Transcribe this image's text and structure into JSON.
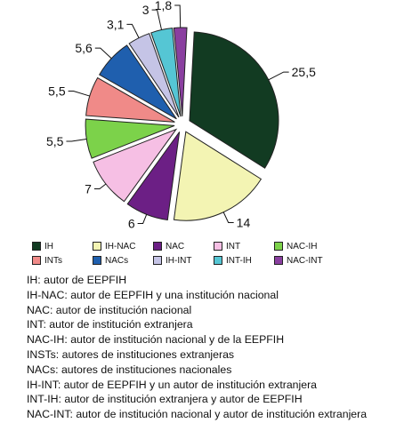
{
  "chart_data": {
    "type": "pie",
    "title": "",
    "slices": [
      {
        "label": "IH",
        "value": 25.5,
        "value_label": "25,5",
        "color": "#123b22"
      },
      {
        "label": "IH-NAC",
        "value": 14,
        "value_label": "14",
        "color": "#f3f4b3"
      },
      {
        "label": "NAC",
        "value": 6,
        "value_label": "6",
        "color": "#6c1f85"
      },
      {
        "label": "INT",
        "value": 7,
        "value_label": "7",
        "color": "#f6bfe4"
      },
      {
        "label": "NAC-IH",
        "value": 5.5,
        "value_label": "5,5",
        "color": "#7cd24a"
      },
      {
        "label": "INTs",
        "value": 5.5,
        "value_label": "5,5",
        "color": "#f08a88"
      },
      {
        "label": "NACs",
        "value": 5.6,
        "value_label": "5,6",
        "color": "#1f5fae"
      },
      {
        "label": "IH-INT",
        "value": 3.1,
        "value_label": "3,1",
        "color": "#c5c4e6"
      },
      {
        "label": "INT-IH",
        "value": 3,
        "value_label": "3",
        "color": "#55c6d4"
      },
      {
        "label": "NAC-INT",
        "value": 1.8,
        "value_label": "1,8",
        "color": "#8a3fa0"
      }
    ],
    "legend_position": "below"
  },
  "definitions": [
    "IH: autor de EEPFIH",
    "IH-NAC: autor de EEPFIH y una institución nacional",
    "NAC: autor de institución nacional",
    "INT: autor de institución extranjera",
    "NAC-IH: autor de institución nacional y de la EEPFIH",
    "INSTs: autores de instituciones extranjeras",
    "NACs: autores de instituciones nacionales",
    "IH-INT: autor de EEPFIH y un autor de institución extranjera",
    "INT-IH: autor de institución extranjera y autor de EEPFIH",
    "NAC-INT: autor de institución nacional y autor de institución extranjera"
  ]
}
